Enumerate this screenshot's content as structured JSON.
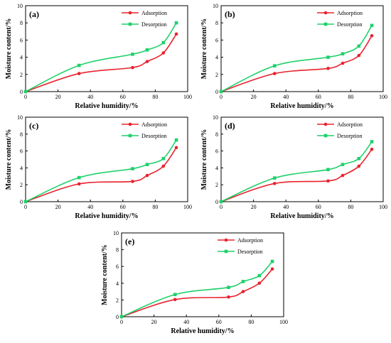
{
  "colors": {
    "adsorption": "#e8222e",
    "desorption": "#1fd16b"
  },
  "chart_data": [
    {
      "type": "line",
      "panel_label": "(a)",
      "xlabel": "Relative humidity/%",
      "ylabel": "Moisture content/%",
      "xlim": [
        0,
        100
      ],
      "ylim": [
        0,
        10
      ],
      "xticks": [
        0,
        20,
        40,
        60,
        80,
        100
      ],
      "yticks": [
        0,
        2,
        4,
        6,
        8,
        10
      ],
      "legend_position": "top-right",
      "series": [
        {
          "name": "Adsorption",
          "x": [
            0,
            33,
            66,
            75,
            85,
            93
          ],
          "y": [
            0,
            2.1,
            2.8,
            3.5,
            4.5,
            6.7
          ]
        },
        {
          "name": "Desorption",
          "x": [
            0,
            33,
            66,
            75,
            85,
            93
          ],
          "y": [
            0,
            3.05,
            4.35,
            4.85,
            5.7,
            8.0
          ]
        }
      ]
    },
    {
      "type": "line",
      "panel_label": "(b)",
      "xlabel": "Relative humidity/%",
      "ylabel": "Moisture content/%",
      "xlim": [
        0,
        100
      ],
      "ylim": [
        0,
        10
      ],
      "xticks": [
        0,
        20,
        40,
        60,
        80,
        100
      ],
      "yticks": [
        0,
        2,
        4,
        6,
        8,
        10
      ],
      "legend_position": "top-right",
      "series": [
        {
          "name": "Adsorption",
          "x": [
            0,
            33,
            66,
            75,
            85,
            93
          ],
          "y": [
            0,
            2.1,
            2.7,
            3.3,
            4.2,
            6.5
          ]
        },
        {
          "name": "Desorption",
          "x": [
            0,
            33,
            66,
            75,
            85,
            93
          ],
          "y": [
            0,
            3.0,
            4.0,
            4.4,
            5.3,
            7.7
          ]
        }
      ]
    },
    {
      "type": "line",
      "panel_label": "(c)",
      "xlabel": "Relative humidity/%",
      "ylabel": "Moisture content/%",
      "xlim": [
        0,
        100
      ],
      "ylim": [
        0,
        10
      ],
      "xticks": [
        0,
        20,
        40,
        60,
        80,
        100
      ],
      "yticks": [
        0,
        2,
        4,
        6,
        8,
        10
      ],
      "legend_position": "top-right",
      "series": [
        {
          "name": "Adsorption",
          "x": [
            0,
            33,
            66,
            75,
            85,
            93
          ],
          "y": [
            0,
            2.1,
            2.4,
            3.1,
            4.2,
            6.4
          ]
        },
        {
          "name": "Desorption",
          "x": [
            0,
            33,
            66,
            75,
            85,
            93
          ],
          "y": [
            0,
            2.85,
            3.9,
            4.4,
            5.1,
            7.3
          ]
        }
      ]
    },
    {
      "type": "line",
      "panel_label": "(d)",
      "xlabel": "Relative humidity/%",
      "ylabel": "Moisture content/%",
      "xlim": [
        0,
        100
      ],
      "ylim": [
        0,
        10
      ],
      "xticks": [
        0,
        20,
        40,
        60,
        80,
        100
      ],
      "yticks": [
        0,
        2,
        4,
        6,
        8,
        10
      ],
      "legend_position": "top-right",
      "series": [
        {
          "name": "Adsorption",
          "x": [
            0,
            33,
            66,
            75,
            85,
            93
          ],
          "y": [
            0,
            2.15,
            2.45,
            3.1,
            4.2,
            6.2
          ]
        },
        {
          "name": "Desorption",
          "x": [
            0,
            33,
            66,
            75,
            85,
            93
          ],
          "y": [
            0,
            2.8,
            3.8,
            4.4,
            5.1,
            7.1
          ]
        }
      ]
    },
    {
      "type": "line",
      "panel_label": "(e)",
      "xlabel": "Relative humidity/%",
      "ylabel": "Moisture content/%",
      "xlim": [
        0,
        100
      ],
      "ylim": [
        0,
        10
      ],
      "xticks": [
        0,
        20,
        40,
        60,
        80,
        100
      ],
      "yticks": [
        0,
        2,
        4,
        6,
        8,
        10
      ],
      "legend_position": "top-right",
      "series": [
        {
          "name": "Adsorption",
          "x": [
            0,
            33,
            66,
            75,
            85,
            93
          ],
          "y": [
            0,
            2.05,
            2.35,
            3.0,
            4.0,
            5.7
          ]
        },
        {
          "name": "Desorption",
          "x": [
            0,
            33,
            66,
            75,
            85,
            93
          ],
          "y": [
            0,
            2.65,
            3.5,
            4.2,
            4.9,
            6.6
          ]
        }
      ]
    }
  ]
}
